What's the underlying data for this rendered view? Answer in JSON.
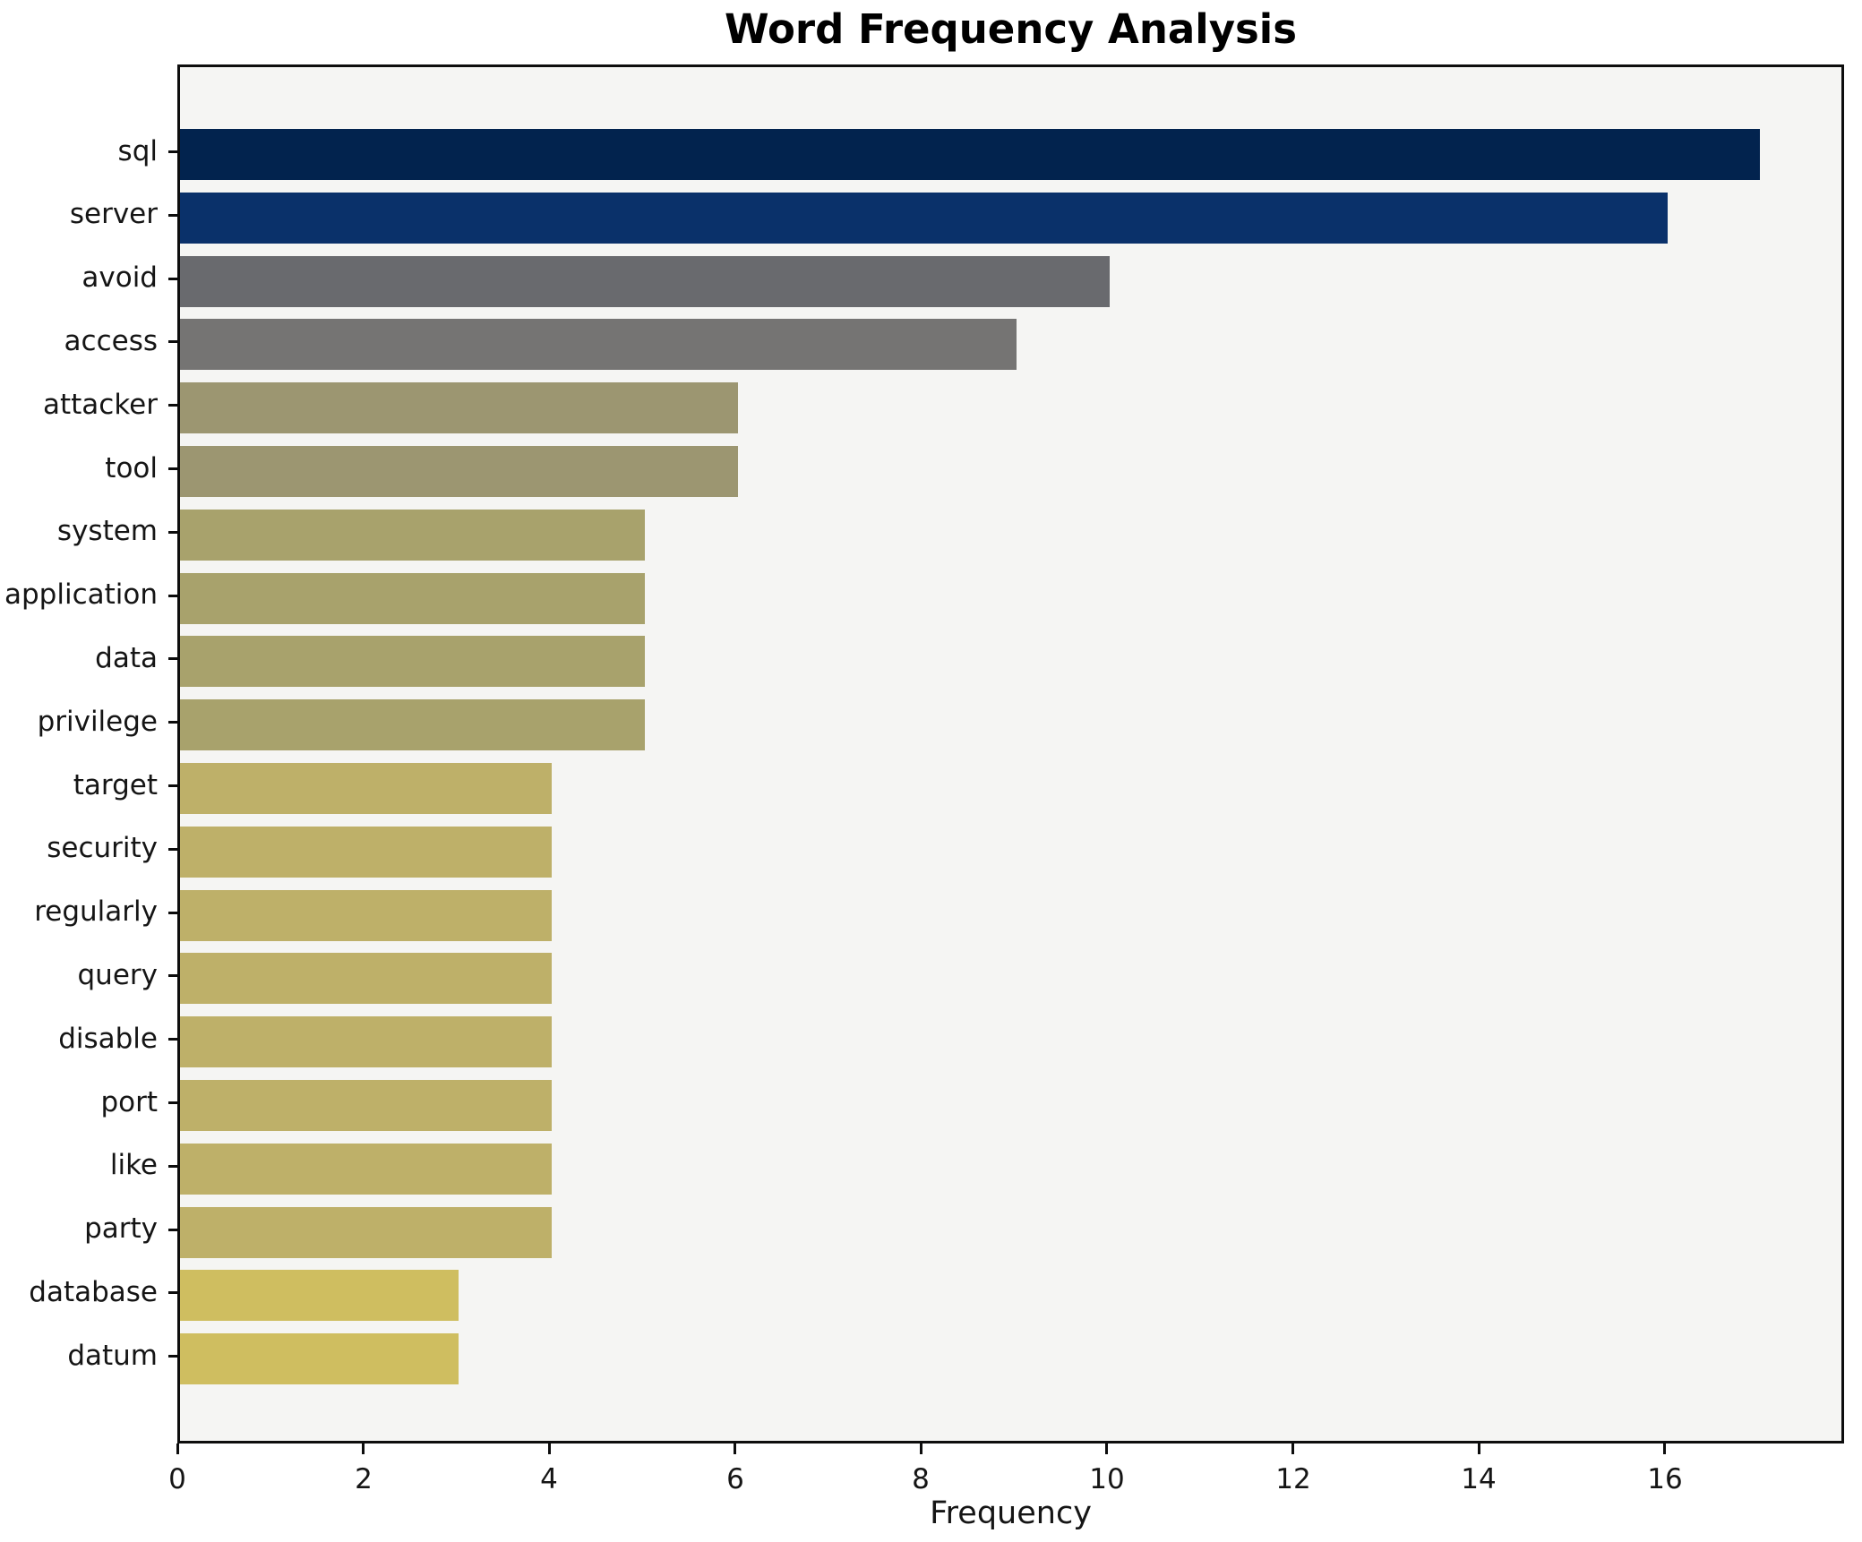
{
  "chart_data": {
    "type": "bar",
    "orientation": "horizontal",
    "title": "Word Frequency Analysis",
    "xlabel": "Frequency",
    "ylabel": "",
    "categories": [
      "sql",
      "server",
      "avoid",
      "access",
      "attacker",
      "tool",
      "system",
      "application",
      "data",
      "privilege",
      "target",
      "security",
      "regularly",
      "query",
      "disable",
      "port",
      "like",
      "party",
      "database",
      "datum"
    ],
    "values": [
      17,
      16,
      10,
      9,
      6,
      6,
      5,
      5,
      5,
      5,
      4,
      4,
      4,
      4,
      4,
      4,
      4,
      4,
      3,
      3
    ],
    "bar_colors": [
      "#02234e",
      "#0a316a",
      "#696a6e",
      "#757473",
      "#9c9671",
      "#9c9671",
      "#a8a26c",
      "#a8a26c",
      "#a8a26c",
      "#a8a26c",
      "#beb069",
      "#beb069",
      "#beb069",
      "#beb069",
      "#beb069",
      "#beb069",
      "#beb069",
      "#beb069",
      "#cfbe60",
      "#cfbe60"
    ],
    "x_ticks": [
      0,
      2,
      4,
      6,
      8,
      10,
      12,
      14,
      16
    ],
    "xlim": [
      0,
      17.93
    ],
    "grid": false,
    "legend": false,
    "plot_bg": "#f5f5f3",
    "fig_bg": "#ffffff",
    "spine_color": "#0d0d0d",
    "text_color": "#151515"
  }
}
